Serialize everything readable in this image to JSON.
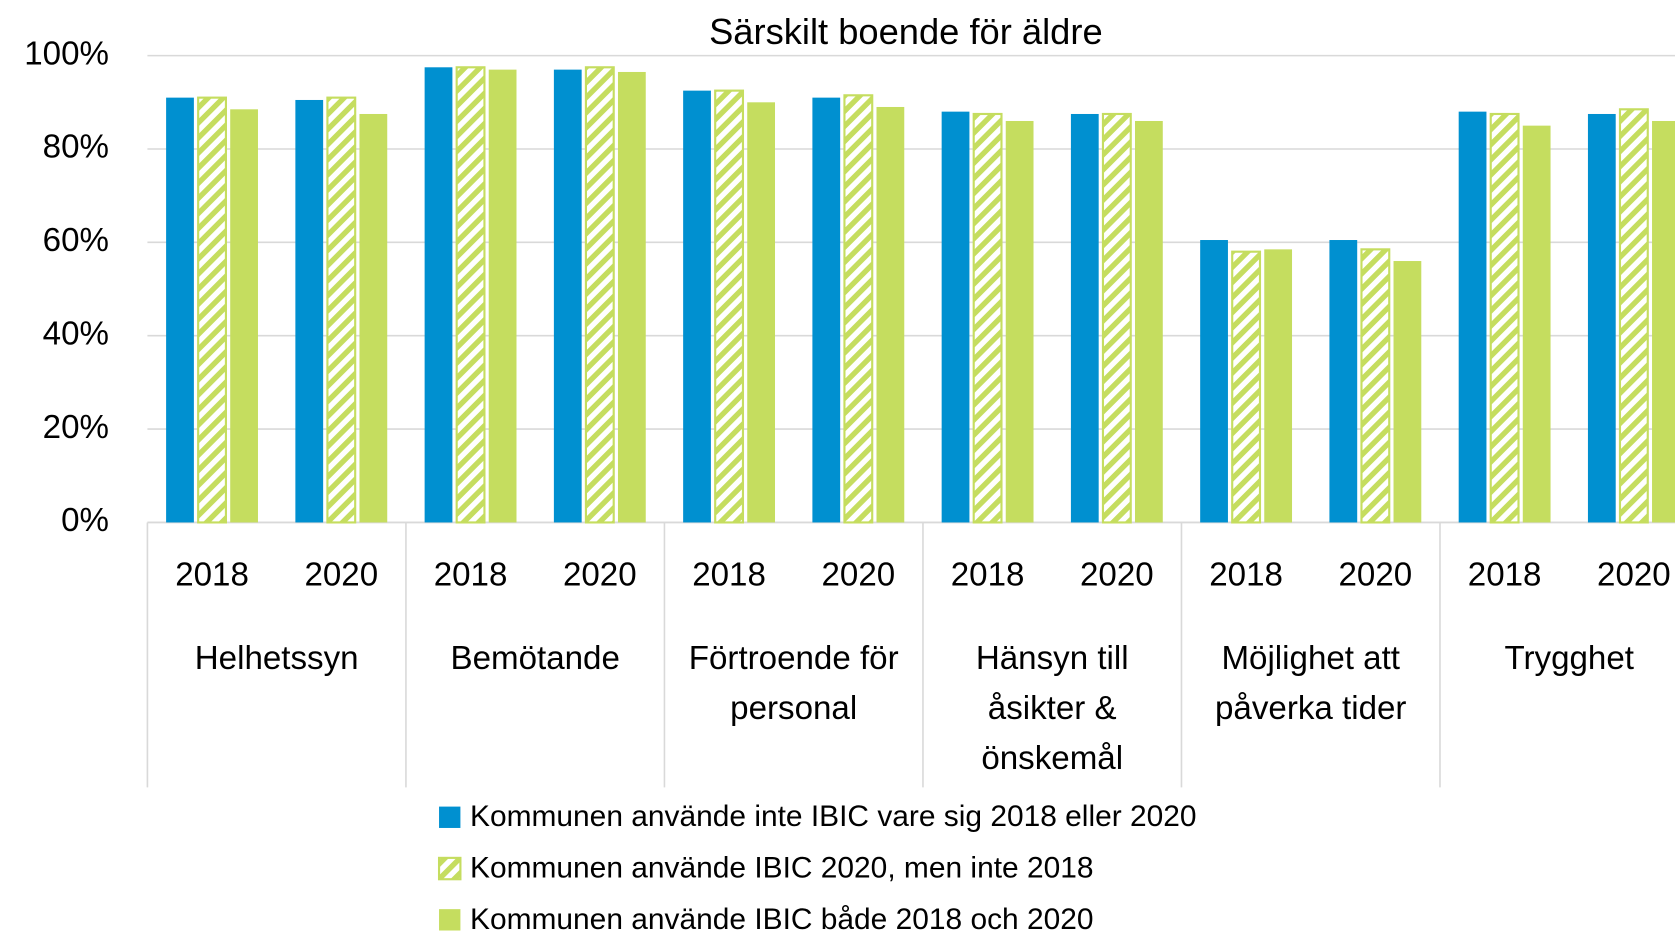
{
  "chart_data": {
    "type": "bar",
    "title": "Särskilt boende för äldre",
    "categories": [
      "2018",
      "2020",
      "2018",
      "2020",
      "2018",
      "2020",
      "2018",
      "2020",
      "2018",
      "2020",
      "2018",
      "2020"
    ],
    "groups": [
      "Helhetssyn",
      "Bemötande",
      "Förtroende för personal",
      "Hänsyn till åsikter & önskemål",
      "Möjlighet att påverka tider",
      "Trygghet"
    ],
    "series": [
      {
        "name": "Kommunen använde inte IBIC vare sig 2018 eller 2020",
        "color": "#0090d0",
        "pattern": "solid",
        "values": [
          91,
          90.5,
          97.5,
          97,
          92.5,
          91,
          88,
          87.5,
          60.5,
          60.5,
          88,
          87.5
        ]
      },
      {
        "name": "Kommunen använde IBIC 2020, men inte 2018",
        "color": "#c5dd5f",
        "pattern": "hatched",
        "values": [
          91,
          91,
          97.5,
          97.5,
          92.5,
          91.5,
          87.5,
          87.5,
          58,
          58.5,
          87.5,
          88.5
        ]
      },
      {
        "name": "Kommunen använde IBIC både 2018 och 2020",
        "color": "#c5dd5f",
        "pattern": "solid",
        "values": [
          88.5,
          87.5,
          97,
          96.5,
          90,
          89,
          86,
          86,
          58.5,
          56,
          85,
          86
        ]
      }
    ],
    "ylim": [
      0,
      100
    ],
    "yticks": [
      {
        "value": 0,
        "label": "0%"
      },
      {
        "value": 20,
        "label": "20%"
      },
      {
        "value": 40,
        "label": "40%"
      },
      {
        "value": 60,
        "label": "60%"
      },
      {
        "value": 80,
        "label": "80%"
      },
      {
        "value": 100,
        "label": "100%"
      }
    ],
    "grid": true,
    "legend": "bottom"
  }
}
